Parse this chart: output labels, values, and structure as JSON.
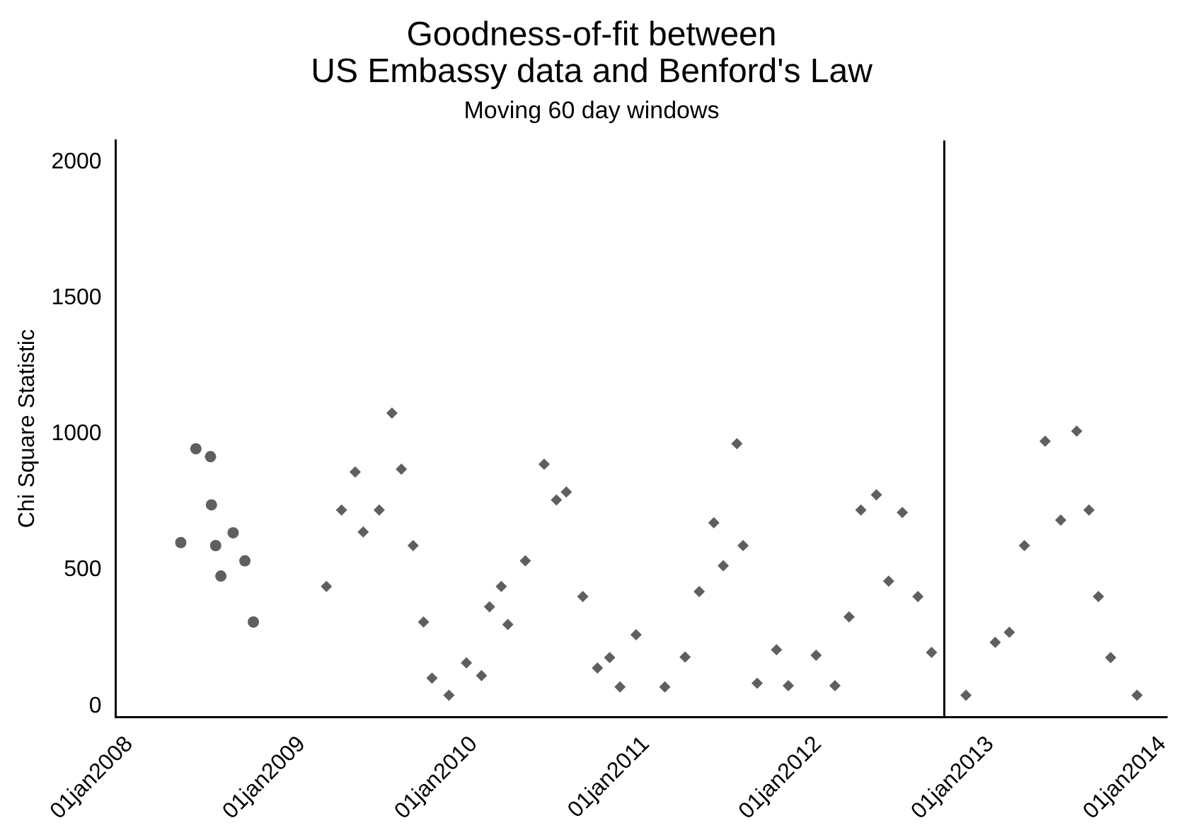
{
  "chart_data": {
    "type": "scatter",
    "title": "Goodness-of-fit between\nUS Embassy data and Benford's Law",
    "subtitle": "Moving 60 day windows",
    "ylabel": "Chi Square Statistic",
    "series": [
      {
        "color": "#5f5f5f",
        "marker": "circle",
        "x": [
          "2008-04-19",
          "2008-05-21",
          "2008-06-21",
          "2008-06-23",
          "2008-07-02",
          "2008-07-13",
          "2008-08-08",
          "2008-09-02",
          "2008-09-20"
        ],
        "values": [
          601,
          946,
          917,
          740,
          590,
          478,
          637,
          534,
          309
        ]
      },
      {
        "color": "#5f5f5f",
        "marker": "diamond",
        "x": [
          "2009-02-22",
          "2009-03-26",
          "2009-04-24",
          "2009-05-11",
          "2009-06-14",
          "2009-07-11",
          "2009-07-31",
          "2009-08-25",
          "2009-09-16",
          "2009-10-04",
          "2009-11-09",
          "2009-12-16",
          "2010-01-17",
          "2010-02-03",
          "2010-02-28",
          "2010-03-14",
          "2010-04-20",
          "2010-05-30",
          "2010-06-25",
          "2010-07-16",
          "2010-08-20",
          "2010-09-20",
          "2010-10-16",
          "2010-11-07",
          "2010-12-11",
          "2011-02-10",
          "2011-03-25",
          "2011-04-24",
          "2011-05-25",
          "2011-06-14",
          "2011-07-13",
          "2011-07-26",
          "2011-08-25",
          "2011-10-05",
          "2011-10-30",
          "2011-12-28",
          "2012-02-06",
          "2012-03-07",
          "2012-04-01",
          "2012-05-04",
          "2012-05-30",
          "2012-06-28",
          "2012-07-31",
          "2012-08-29",
          "2012-11-10",
          "2013-01-11",
          "2013-02-10",
          "2013-03-14",
          "2013-04-27",
          "2013-05-30",
          "2013-07-03",
          "2013-07-29",
          "2013-08-18",
          "2013-09-13",
          "2013-11-08"
        ],
        "values": [
          440,
          721,
          861,
          640,
          721,
          1077,
          871,
          590,
          309,
          103,
          40,
          159,
          112,
          365,
          440,
          300,
          534,
          889,
          758,
          787,
          403,
          140,
          178,
          70,
          262,
          70,
          180,
          421,
          674,
          516,
          965,
          590,
          84,
          207,
          75,
          187,
          75,
          328,
          721,
          777,
          459,
          712,
          403,
          197,
          40,
          234,
          271,
          590,
          974,
          684,
          1011,
          721,
          403,
          178,
          40
        ]
      }
    ],
    "xlim": [
      "2007-12-03",
      "2014-01-10"
    ],
    "xticks": [
      {
        "value": "2008-01-01",
        "label": "01jan2008"
      },
      {
        "value": "2009-01-01",
        "label": "01jan2009"
      },
      {
        "value": "2010-01-01",
        "label": "01jan2010"
      },
      {
        "value": "2011-01-01",
        "label": "01jan2011"
      },
      {
        "value": "2012-01-01",
        "label": "01jan2012"
      },
      {
        "value": "2013-01-01",
        "label": "01jan2013"
      },
      {
        "value": "2014-01-01",
        "label": "01jan2014"
      }
    ],
    "ylim": [
      -40,
      2080
    ],
    "yticks": [
      0,
      500,
      1000,
      1500,
      2000
    ],
    "ref_lines": [
      {
        "axis": "x",
        "value": "2012-09-25",
        "color": "#000000"
      }
    ],
    "grid": false,
    "legend": false
  }
}
